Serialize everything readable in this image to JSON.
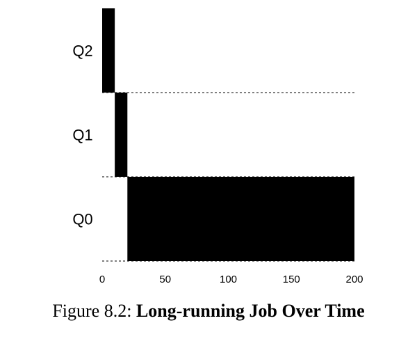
{
  "chart_data": {
    "type": "bar",
    "queues": [
      "Q2",
      "Q1",
      "Q0"
    ],
    "segments": [
      {
        "queue": "Q2",
        "start": 0,
        "end": 10
      },
      {
        "queue": "Q1",
        "start": 10,
        "end": 20
      },
      {
        "queue": "Q0",
        "start": 20,
        "end": 200
      }
    ],
    "x_ticks": [
      0,
      50,
      100,
      150,
      200
    ],
    "xlim": [
      0,
      200
    ],
    "grid": false,
    "queue_separators": "dashed"
  },
  "caption": {
    "prefix": "Figure 8.2: ",
    "title": "Long-running Job Over Time"
  }
}
